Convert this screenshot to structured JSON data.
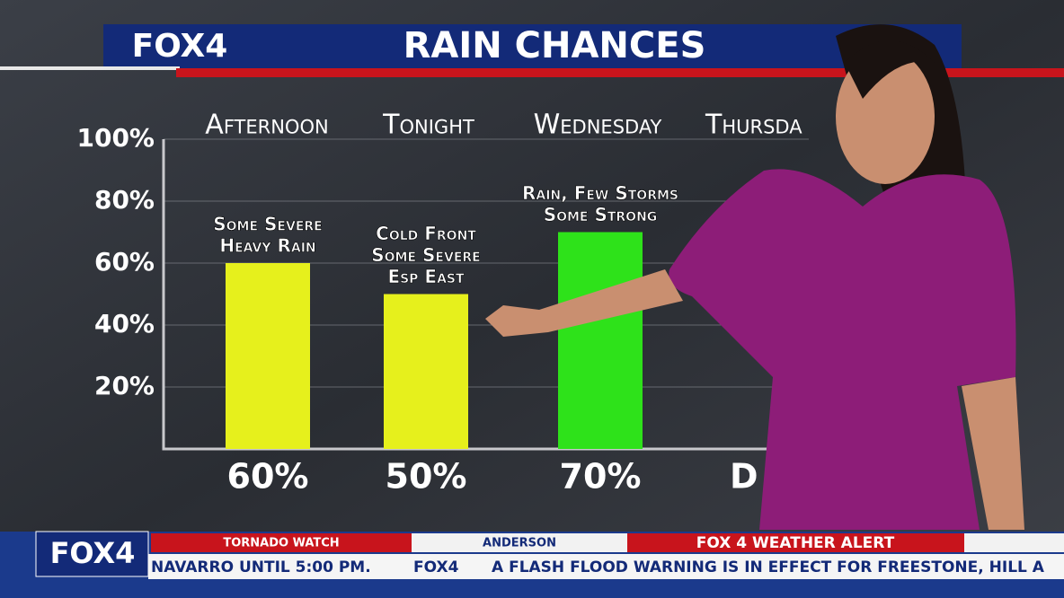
{
  "header": {
    "logo": "FOX4"
  },
  "chart_data": {
    "type": "bar",
    "title": "RAIN CHANCES",
    "categories": [
      "Afternoon",
      "Tonight",
      "Wednesday"
    ],
    "values": [
      60,
      50,
      70
    ],
    "value_labels": [
      "60%",
      "50%",
      "70%"
    ],
    "colors": [
      "#e6f01c",
      "#e6f01c",
      "#2ee21a"
    ],
    "annotations": [
      [
        "Some Severe",
        "Heavy Rain"
      ],
      [
        "Cold Front",
        "Some Severe",
        "Esp East"
      ],
      [
        "Rain, Few Storms",
        "Some Strong"
      ]
    ],
    "partial_category": "Thursda",
    "partial_value_label": "D",
    "ylim": [
      0,
      100
    ],
    "yticks": [
      {
        "value": 20,
        "label": "20%"
      },
      {
        "value": 40,
        "label": "40%"
      },
      {
        "value": 60,
        "label": "60%"
      },
      {
        "value": 80,
        "label": "80%"
      },
      {
        "value": 100,
        "label": "100%"
      }
    ],
    "grid": true
  },
  "ticker": {
    "logo": "FOX4",
    "tabs": [
      "TORNADO WATCH",
      "ANDERSON",
      "FOX 4 WEATHER ALERT"
    ],
    "crawl": [
      "NAVARRO UNTIL 5:00 PM.",
      "FOX4",
      "A FLASH FLOOD WARNING IS IN EFFECT FOR FREESTONE, HILL A"
    ]
  }
}
